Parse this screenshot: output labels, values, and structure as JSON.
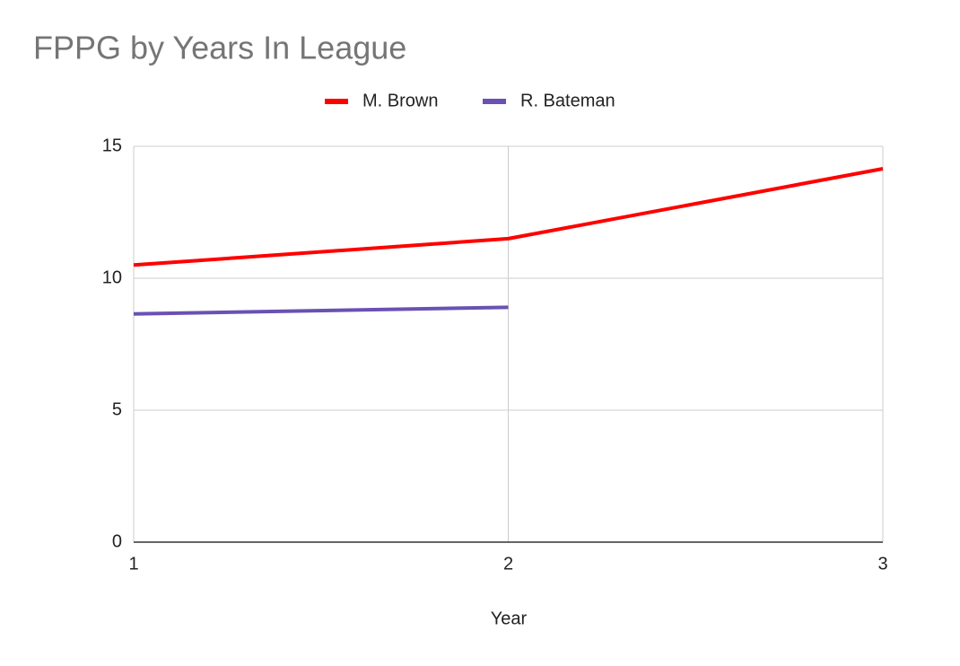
{
  "chart_data": {
    "type": "line",
    "title": "FPPG by Years In League",
    "x_label": "Year",
    "x": [
      1,
      2,
      3
    ],
    "series": [
      {
        "name": "M. Brown",
        "color": "#ff0000",
        "values": [
          10.5,
          11.5,
          14.15
        ]
      },
      {
        "name": "R. Bateman",
        "color": "#6a51b3",
        "values": [
          8.65,
          8.9,
          null
        ]
      }
    ],
    "xlim": [
      1,
      3
    ],
    "xticks": [
      1,
      2,
      3
    ],
    "ylim": [
      0,
      15
    ],
    "yticks": [
      0,
      5,
      10,
      15
    ],
    "grid": true,
    "legend": "top"
  }
}
